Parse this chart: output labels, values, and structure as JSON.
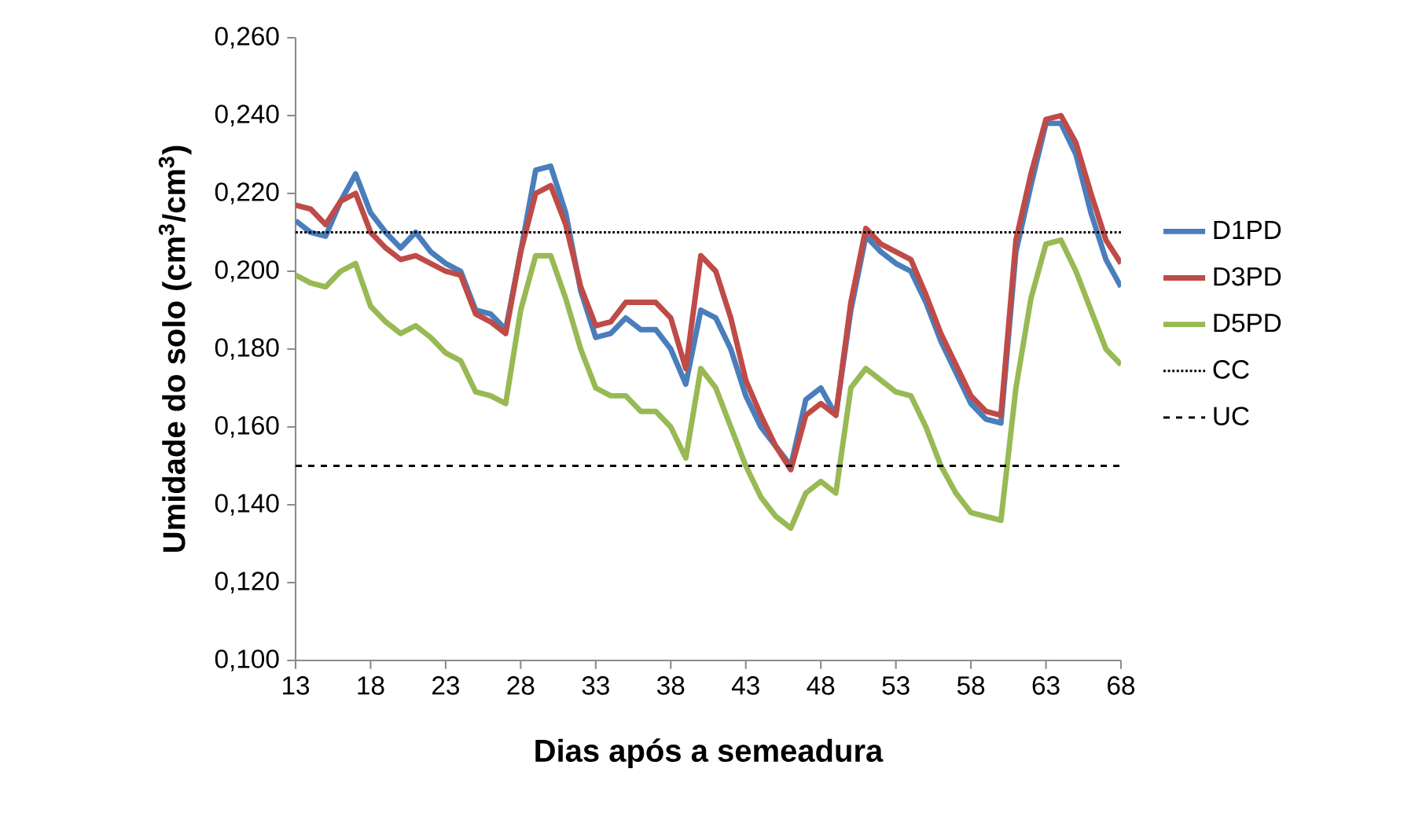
{
  "chart_data": {
    "type": "line",
    "xlabel": "Dias após a semeadura",
    "ylabel": "Umidade do solo (cm$^{3}$/cm$^{3}$)",
    "x": [
      13,
      14,
      15,
      16,
      17,
      18,
      19,
      20,
      21,
      22,
      23,
      24,
      25,
      26,
      27,
      28,
      29,
      30,
      31,
      32,
      33,
      34,
      35,
      36,
      37,
      38,
      39,
      40,
      41,
      42,
      43,
      44,
      45,
      46,
      47,
      48,
      49,
      50,
      51,
      52,
      53,
      54,
      55,
      56,
      57,
      58,
      59,
      60,
      61,
      62,
      63,
      64,
      65,
      66,
      67,
      68
    ],
    "series": [
      {
        "name": "D1PD",
        "color": "#4a7ebb",
        "values": [
          0.213,
          0.21,
          0.209,
          0.218,
          0.225,
          0.215,
          0.21,
          0.206,
          0.21,
          0.205,
          0.202,
          0.2,
          0.19,
          0.189,
          0.185,
          0.205,
          0.226,
          0.227,
          0.215,
          0.195,
          0.183,
          0.184,
          0.188,
          0.185,
          0.185,
          0.18,
          0.171,
          0.19,
          0.188,
          0.18,
          0.168,
          0.16,
          0.155,
          0.15,
          0.167,
          0.17,
          0.163,
          0.19,
          0.209,
          0.205,
          0.202,
          0.2,
          0.192,
          0.182,
          0.174,
          0.166,
          0.162,
          0.161,
          0.205,
          0.222,
          0.238,
          0.238,
          0.23,
          0.215,
          0.203,
          0.196
        ]
      },
      {
        "name": "D3PD",
        "color": "#be4b48",
        "values": [
          0.217,
          0.216,
          0.212,
          0.218,
          0.22,
          0.21,
          0.206,
          0.203,
          0.204,
          0.202,
          0.2,
          0.199,
          0.189,
          0.187,
          0.184,
          0.205,
          0.22,
          0.222,
          0.212,
          0.196,
          0.186,
          0.187,
          0.192,
          0.192,
          0.192,
          0.188,
          0.175,
          0.204,
          0.2,
          0.188,
          0.172,
          0.163,
          0.155,
          0.149,
          0.163,
          0.166,
          0.163,
          0.192,
          0.211,
          0.207,
          0.205,
          0.203,
          0.194,
          0.184,
          0.176,
          0.168,
          0.164,
          0.163,
          0.208,
          0.225,
          0.239,
          0.24,
          0.233,
          0.22,
          0.208,
          0.202
        ]
      },
      {
        "name": "D5PD",
        "color": "#98b954",
        "values": [
          0.199,
          0.197,
          0.196,
          0.2,
          0.202,
          0.191,
          0.187,
          0.184,
          0.186,
          0.183,
          0.179,
          0.177,
          0.169,
          0.168,
          0.166,
          0.19,
          0.204,
          0.204,
          0.193,
          0.18,
          0.17,
          0.168,
          0.168,
          0.164,
          0.164,
          0.16,
          0.152,
          0.175,
          0.17,
          0.16,
          0.15,
          0.142,
          0.137,
          0.134,
          0.143,
          0.146,
          0.143,
          0.17,
          0.175,
          0.172,
          0.169,
          0.168,
          0.16,
          0.15,
          0.143,
          0.138,
          0.137,
          0.136,
          0.17,
          0.193,
          0.207,
          0.208,
          0.2,
          0.19,
          0.18,
          0.176
        ]
      }
    ],
    "ref_lines": [
      {
        "axis": "y",
        "value": 0.21,
        "label": "CC",
        "color": "#000000",
        "line_style": "dotted"
      },
      {
        "axis": "y",
        "value": 0.15,
        "label": "UC",
        "color": "#000000",
        "line_style": "dashed"
      }
    ],
    "xlim": [
      13,
      68
    ],
    "xticks": [
      13,
      18,
      23,
      28,
      33,
      38,
      43,
      48,
      53,
      58,
      63,
      68
    ],
    "ylim": [
      0.1,
      0.26
    ],
    "yticks": [
      {
        "value": 0.1,
        "label": "0,100"
      },
      {
        "value": 0.12,
        "label": "0,120"
      },
      {
        "value": 0.14,
        "label": "0,140"
      },
      {
        "value": 0.16,
        "label": "0,160"
      },
      {
        "value": 0.18,
        "label": "0,180"
      },
      {
        "value": 0.2,
        "label": "0,200"
      },
      {
        "value": 0.22,
        "label": "0,220"
      },
      {
        "value": 0.24,
        "label": "0,240"
      },
      {
        "value": 0.26,
        "label": "0,260"
      }
    ],
    "legend": "right",
    "grid": false,
    "marker": "none",
    "line_style": "solid"
  }
}
